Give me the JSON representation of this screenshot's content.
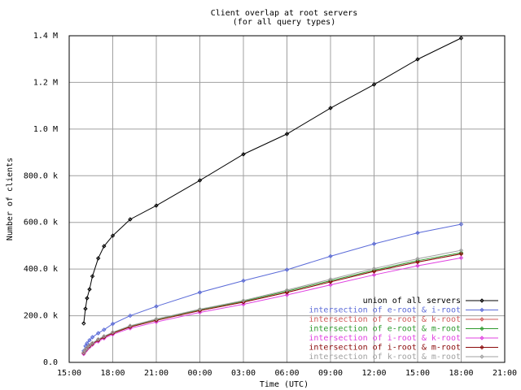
{
  "chart_data": {
    "type": "line",
    "title": "Client overlap at root servers",
    "subtitle": "(for all query types)",
    "x_label": "Time (UTC)",
    "y_label": "Number of clients",
    "xlim": [
      15,
      45
    ],
    "xticks": [
      {
        "value": 15,
        "label": "15:00"
      },
      {
        "value": 18,
        "label": "18:00"
      },
      {
        "value": 21,
        "label": "21:00"
      },
      {
        "value": 24,
        "label": "00:00"
      },
      {
        "value": 27,
        "label": "03:00"
      },
      {
        "value": 30,
        "label": "06:00"
      },
      {
        "value": 33,
        "label": "09:00"
      },
      {
        "value": 36,
        "label": "12:00"
      },
      {
        "value": 39,
        "label": "15:00"
      },
      {
        "value": 42,
        "label": "18:00"
      },
      {
        "value": 45,
        "label": "21:00"
      }
    ],
    "ylim": [
      0,
      1400000
    ],
    "yticks": [
      {
        "value": 0,
        "label": "0.0"
      },
      {
        "value": 200000,
        "label": "200.0 k"
      },
      {
        "value": 400000,
        "label": "400.0 k"
      },
      {
        "value": 600000,
        "label": "600.0 k"
      },
      {
        "value": 800000,
        "label": "800.0 k"
      },
      {
        "value": 1000000,
        "label": "1.0 M"
      },
      {
        "value": 1200000,
        "label": "1.2 M"
      },
      {
        "value": 1400000,
        "label": "1.4 M"
      }
    ],
    "grid": true,
    "legend": "bottom-right",
    "x": [
      16,
      16.12,
      16.23,
      16.4,
      16.6,
      17,
      17.4,
      18,
      19.2,
      21,
      24,
      27,
      30,
      33,
      36,
      39,
      42
    ],
    "series": [
      {
        "name": "union of all servers",
        "color": "#000000",
        "values": [
          167000,
          230000,
          275000,
          313000,
          369000,
          446000,
          498000,
          543000,
          613000,
          672000,
          780000,
          892000,
          979000,
          1090000,
          1191000,
          1299000,
          1390000
        ]
      },
      {
        "name": "intersection of e-root & i-root",
        "color": "#5b6bd8",
        "values": [
          49000,
          70000,
          82000,
          95000,
          108000,
          125000,
          140000,
          165000,
          200000,
          240000,
          300000,
          350000,
          397000,
          455000,
          508000,
          555000,
          592000
        ]
      },
      {
        "name": "intersection of e-root & k-root",
        "color": "#d05a5a",
        "values": [
          40000,
          52000,
          60000,
          70000,
          80000,
          95000,
          108000,
          125000,
          152000,
          180000,
          222000,
          258000,
          300000,
          345000,
          390000,
          430000,
          465000
        ]
      },
      {
        "name": "intersection of e-root & m-root",
        "color": "#2e9a2e",
        "values": [
          41000,
          53000,
          61000,
          72000,
          82000,
          98000,
          111000,
          128000,
          156000,
          184000,
          226000,
          262000,
          305000,
          350000,
          395000,
          436000,
          470000
        ]
      },
      {
        "name": "intersection of i-root & k-root",
        "color": "#e040e0",
        "values": [
          36000,
          48000,
          56000,
          66000,
          76000,
          90000,
          103000,
          120000,
          146000,
          173000,
          214000,
          249000,
          289000,
          332000,
          375000,
          414000,
          448000
        ]
      },
      {
        "name": "intersection of i-root & m-root",
        "color": "#8b0a0a",
        "values": [
          40000,
          52000,
          60000,
          70000,
          80000,
          95000,
          108000,
          125000,
          152000,
          180000,
          222000,
          258000,
          300000,
          345000,
          390000,
          430000,
          465000
        ]
      },
      {
        "name": "intersection of k-root & m-root",
        "color": "#a0a0a0",
        "values": [
          42000,
          54000,
          62000,
          73000,
          83000,
          99000,
          112000,
          129000,
          157000,
          186000,
          228000,
          265000,
          310000,
          356000,
          402000,
          444000,
          480000
        ]
      }
    ]
  }
}
